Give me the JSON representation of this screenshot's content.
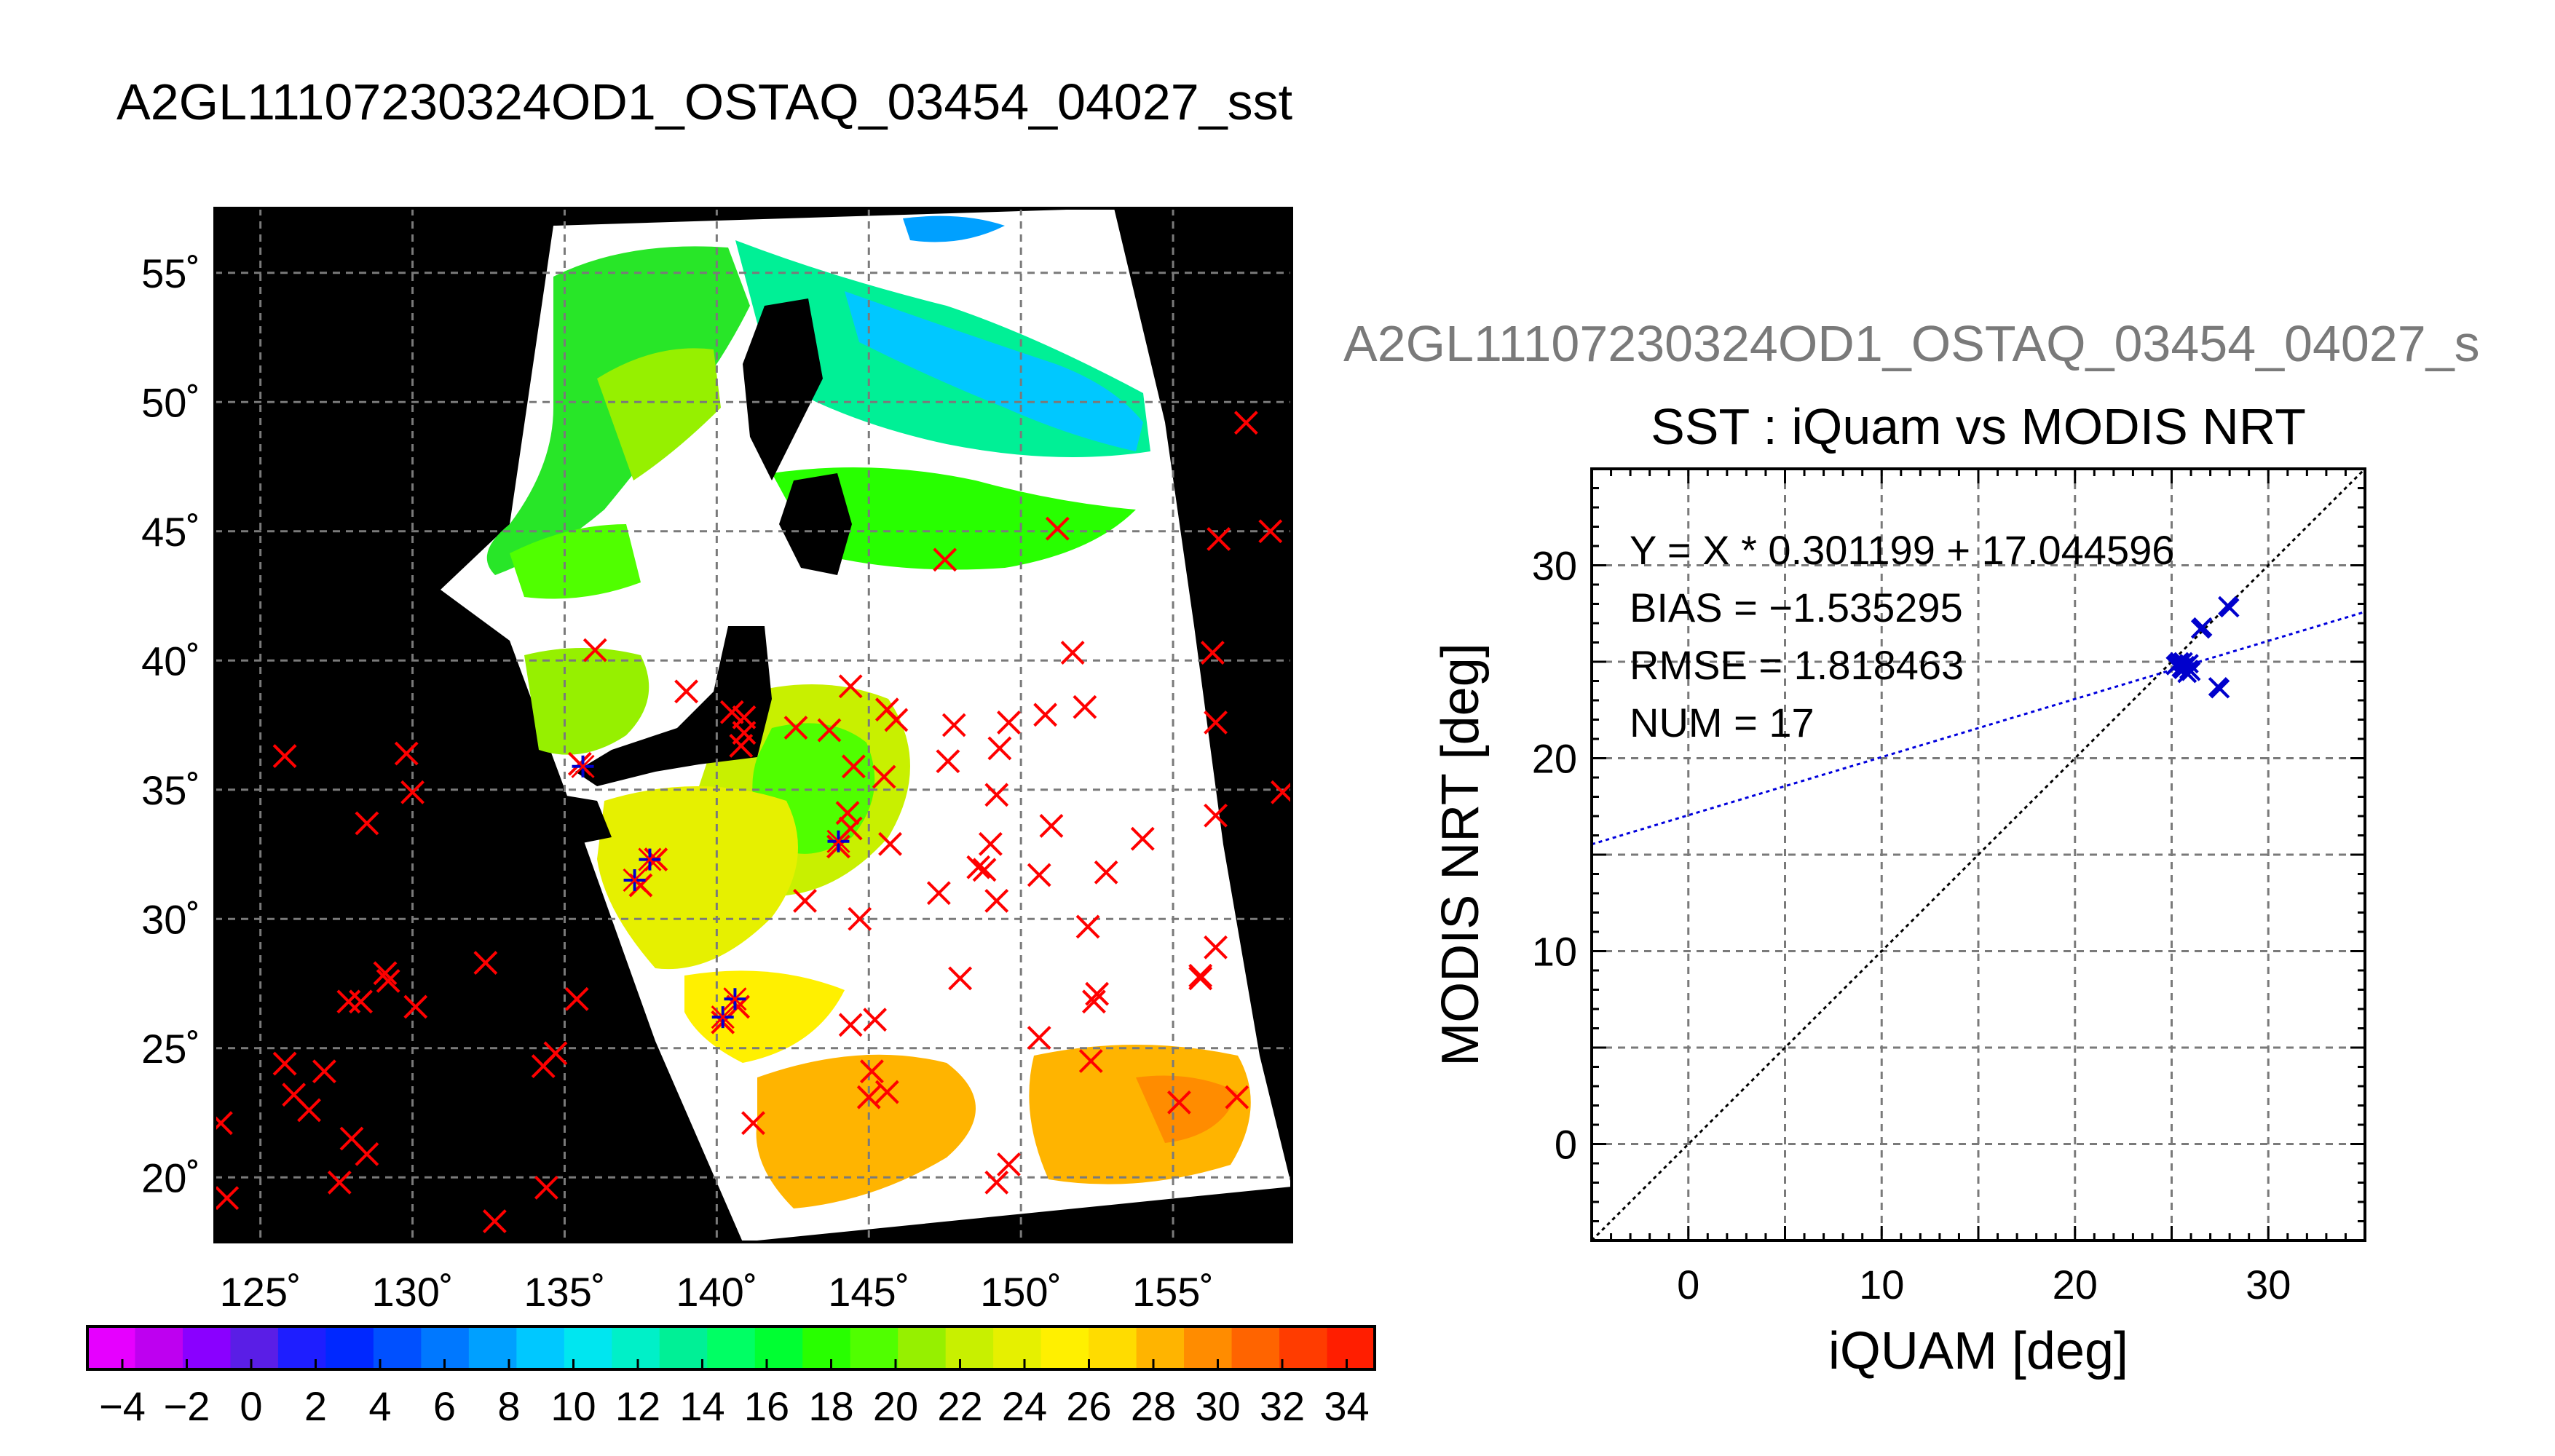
{
  "map_title": "A2GL11107230324OD1_OSTAQ_03454_04027_sst",
  "scatter_supertitle": "A2GL11107230324OD1_OSTAQ_03454_04027_s",
  "colors": {
    "land_and_nodata": "#000000",
    "cloud_mask": "#ffffff",
    "iquam_marker": "#ff0000",
    "matchup_marker": "#0000cc",
    "fit_line": "#0000dd",
    "identity_line": "#000000",
    "grid": "#7a7a7a"
  },
  "map_labels": {
    "lat_ticks": [
      "55˚",
      "50˚",
      "45˚",
      "40˚",
      "35˚",
      "30˚",
      "25˚",
      "20˚"
    ],
    "lon_ticks": [
      "125˚",
      "130˚",
      "135˚",
      "140˚",
      "145˚",
      "150˚",
      "155˚"
    ]
  },
  "colorbar": {
    "tick_labels": [
      "−4",
      "−2",
      "0",
      "2",
      "4",
      "6",
      "8",
      "10",
      "12",
      "14",
      "16",
      "18",
      "20",
      "22",
      "24",
      "26",
      "28",
      "30",
      "32",
      "34"
    ],
    "palette": [
      "#e600ff",
      "#be00f0",
      "#8a00ff",
      "#5a1ee6",
      "#1e1eff",
      "#0028ff",
      "#0050ff",
      "#0078ff",
      "#00a0ff",
      "#00c8ff",
      "#00e6f0",
      "#00f0c8",
      "#00f096",
      "#00ff64",
      "#00ff32",
      "#28ff00",
      "#50ff00",
      "#96f000",
      "#c8f000",
      "#e6f000",
      "#fff000",
      "#ffdc00",
      "#ffb400",
      "#ff8c00",
      "#ff6400",
      "#ff3c00",
      "#ff1e00"
    ]
  },
  "chart_data": [
    {
      "type": "scatter",
      "title": "",
      "xlabel": "",
      "ylabel": "",
      "xlim": [
        123.5,
        158.9
      ],
      "ylim": [
        17.5,
        57.5
      ],
      "x_ticks": [
        125,
        130,
        135,
        140,
        145,
        150,
        155
      ],
      "y_ticks": [
        20,
        25,
        30,
        35,
        40,
        45,
        50,
        55
      ],
      "grid": true,
      "series": [
        {
          "marker": "x",
          "color": "#ff0000",
          "points": [
            [
              157.4,
              49.2
            ],
            [
              158.2,
              45.0
            ],
            [
              156.5,
              44.7
            ],
            [
              151.2,
              45.1
            ],
            [
              147.5,
              43.9
            ],
            [
              156.3,
              40.3
            ],
            [
              151.7,
              40.3
            ],
            [
              145.6,
              38.1
            ],
            [
              147.8,
              37.5
            ],
            [
              149.6,
              37.6
            ],
            [
              150.8,
              37.9
            ],
            [
              152.1,
              38.2
            ],
            [
              156.4,
              37.6
            ],
            [
              145.9,
              37.7
            ],
            [
              144.4,
              39.0
            ],
            [
              143.7,
              37.3
            ],
            [
              147.6,
              36.1
            ],
            [
              149.3,
              36.6
            ],
            [
              145.5,
              35.5
            ],
            [
              158.6,
              34.9
            ],
            [
              149.2,
              34.8
            ],
            [
              156.4,
              34.0
            ],
            [
              151.0,
              33.6
            ],
            [
              154.0,
              33.1
            ],
            [
              145.7,
              32.9
            ],
            [
              144.4,
              33.5
            ],
            [
              144.0,
              32.8
            ],
            [
              148.6,
              32.0
            ],
            [
              149.0,
              32.9
            ],
            [
              148.8,
              31.9
            ],
            [
              147.3,
              31.0
            ],
            [
              150.6,
              31.7
            ],
            [
              152.8,
              31.8
            ],
            [
              142.9,
              30.7
            ],
            [
              144.7,
              30.0
            ],
            [
              149.2,
              30.7
            ],
            [
              152.2,
              29.7
            ],
            [
              156.4,
              28.9
            ],
            [
              148.0,
              27.7
            ],
            [
              152.5,
              27.1
            ],
            [
              152.4,
              26.8
            ],
            [
              155.9,
              27.7
            ],
            [
              155.9,
              27.8
            ],
            [
              144.4,
              25.9
            ],
            [
              145.2,
              26.1
            ],
            [
              150.6,
              25.4
            ],
            [
              152.3,
              24.5
            ],
            [
              145.1,
              24.1
            ],
            [
              145.0,
              23.1
            ],
            [
              145.6,
              23.3
            ],
            [
              155.2,
              22.9
            ],
            [
              157.1,
              23.1
            ],
            [
              141.2,
              22.1
            ],
            [
              149.6,
              20.5
            ],
            [
              149.2,
              19.8
            ],
            [
              129.8,
              36.4
            ],
            [
              130.0,
              34.9
            ],
            [
              125.8,
              36.3
            ],
            [
              128.5,
              33.7
            ],
            [
              132.4,
              28.3
            ],
            [
              129.1,
              27.9
            ],
            [
              129.2,
              27.6
            ],
            [
              128.3,
              26.8
            ],
            [
              127.9,
              26.8
            ],
            [
              130.1,
              26.6
            ],
            [
              135.4,
              26.9
            ],
            [
              134.7,
              24.8
            ],
            [
              134.3,
              24.3
            ],
            [
              125.8,
              24.4
            ],
            [
              127.1,
              24.1
            ],
            [
              126.1,
              23.2
            ],
            [
              126.6,
              22.6
            ],
            [
              123.7,
              22.1
            ],
            [
              128.0,
              21.5
            ],
            [
              128.5,
              20.9
            ],
            [
              127.6,
              19.8
            ],
            [
              123.9,
              19.2
            ],
            [
              134.4,
              19.6
            ],
            [
              132.7,
              18.3
            ],
            [
              136.0,
              40.4
            ],
            [
              137.5,
              31.3
            ],
            [
              138.0,
              32.3
            ],
            [
              135.5,
              36.0
            ],
            [
              139.0,
              38.8
            ],
            [
              140.5,
              38.0
            ],
            [
              140.9,
              37.8
            ],
            [
              140.9,
              37.2
            ],
            [
              140.8,
              36.7
            ],
            [
              142.6,
              37.4
            ],
            [
              144.3,
              34.1
            ],
            [
              144.5,
              35.9
            ],
            [
              140.7,
              26.6
            ],
            [
              140.2,
              26.0
            ]
          ]
        },
        {
          "marker": "+",
          "color": "#0000cc",
          "points": [
            [
              135.6,
              35.9
            ],
            [
              137.3,
              31.5
            ],
            [
              137.8,
              32.3
            ],
            [
              144.0,
              33.0
            ],
            [
              140.2,
              26.2
            ],
            [
              140.6,
              26.9
            ]
          ]
        }
      ]
    },
    {
      "type": "scatter",
      "title": "SST : iQuam vs MODIS NRT",
      "xlabel": "iQUAM [deg]",
      "ylabel": "MODIS NRT [deg]",
      "xlim": [
        -5,
        35
      ],
      "ylim": [
        -5,
        35
      ],
      "x_ticks": [
        0,
        10,
        20,
        30
      ],
      "y_ticks": [
        0,
        10,
        20,
        30
      ],
      "grid": true,
      "stats": [
        "Y = X * 0.301199 + 17.044596",
        "BIAS = −1.535295",
        "RMSE = 1.818463",
        "NUM = 17"
      ],
      "fit": {
        "slope": 0.301199,
        "intercept": 17.044596
      },
      "identity_line": true,
      "series": [
        {
          "marker": "x",
          "color": "#0000cc",
          "points": [
            [
              25.2,
              24.8
            ],
            [
              25.4,
              25.0
            ],
            [
              25.6,
              24.6
            ],
            [
              25.8,
              24.4
            ],
            [
              25.9,
              24.9
            ],
            [
              25.5,
              24.7
            ],
            [
              26.0,
              24.5
            ],
            [
              25.3,
              24.9
            ],
            [
              25.7,
              24.8
            ],
            [
              26.5,
              26.7
            ],
            [
              26.6,
              26.8
            ],
            [
              28.0,
              27.8
            ],
            [
              27.9,
              27.9
            ],
            [
              27.5,
              23.6
            ],
            [
              27.4,
              23.7
            ],
            [
              25.6,
              25.0
            ],
            [
              25.9,
              24.6
            ]
          ]
        }
      ]
    }
  ]
}
